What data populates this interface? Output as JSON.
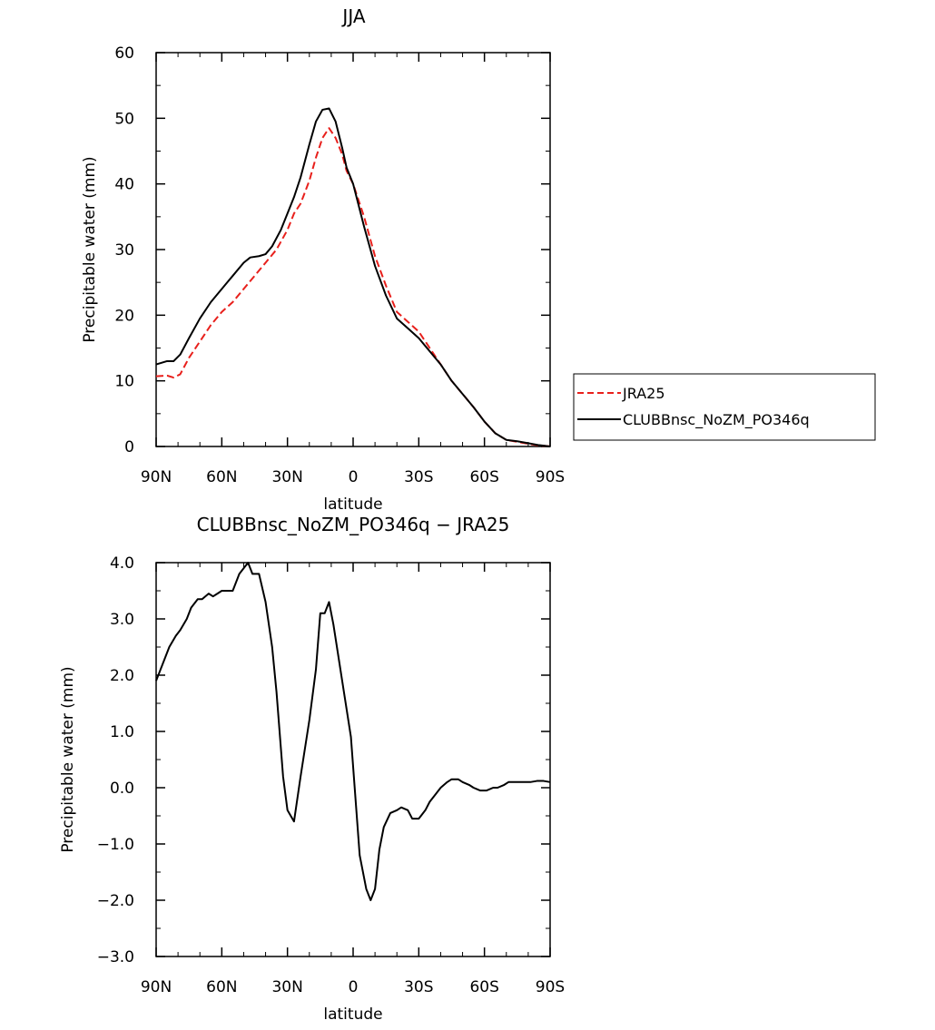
{
  "chart_data": [
    {
      "type": "line",
      "title": "JJA",
      "xlabel": "latitude",
      "ylabel": "Precipitable water (mm)",
      "x_ticks": [
        "90N",
        "60N",
        "30N",
        "0",
        "30S",
        "60S",
        "90S"
      ],
      "xlim": [
        90,
        -90
      ],
      "ylim": [
        0,
        60
      ],
      "y_ticks": [
        "0",
        "10",
        "20",
        "30",
        "40",
        "50",
        "60"
      ],
      "legend_position": "right",
      "grid": false,
      "series": [
        {
          "name": "JRA25",
          "color": "#e8201c",
          "style": "dashed",
          "x": [
            90,
            85,
            82,
            79,
            75,
            70,
            65,
            60,
            55,
            50,
            45,
            40,
            35,
            30,
            27,
            24,
            20,
            17,
            14,
            11,
            8,
            5,
            3,
            0,
            -5,
            -10,
            -15,
            -20,
            -25,
            -30,
            -35,
            -40,
            -45,
            -50,
            -55,
            -60,
            -65,
            -70,
            -75,
            -80,
            -85,
            -90
          ],
          "y": [
            10.7,
            10.8,
            10.5,
            11.0,
            13.5,
            16.0,
            18.5,
            20.5,
            22.0,
            24.0,
            26.0,
            28.0,
            30.0,
            33.0,
            35.5,
            37.0,
            40.5,
            44.0,
            47.0,
            48.5,
            47.0,
            44.5,
            42.0,
            40.0,
            35.0,
            29.0,
            24.5,
            20.5,
            19.0,
            17.5,
            15.0,
            12.5,
            10.0,
            8.0,
            6.0,
            3.8,
            2.0,
            1.0,
            0.7,
            0.4,
            0.15,
            0.05
          ]
        },
        {
          "name": "CLUBBnsc_NoZM_PO346q",
          "color": "#000000",
          "style": "solid",
          "x": [
            90,
            85,
            82,
            79,
            75,
            70,
            65,
            60,
            55,
            50,
            47,
            43,
            40,
            37,
            33,
            30,
            27,
            24,
            20,
            17,
            14,
            11,
            8,
            5,
            3,
            0,
            -5,
            -10,
            -15,
            -20,
            -25,
            -30,
            -35,
            -40,
            -45,
            -50,
            -55,
            -60,
            -65,
            -70,
            -75,
            -80,
            -85,
            -90
          ],
          "y": [
            12.5,
            13.0,
            13.0,
            14.0,
            16.5,
            19.5,
            22.0,
            24.0,
            26.0,
            28.0,
            28.8,
            29.0,
            29.3,
            30.5,
            33.0,
            35.5,
            38.0,
            41.0,
            46.0,
            49.5,
            51.3,
            51.5,
            49.5,
            45.5,
            42.5,
            40.0,
            33.5,
            27.5,
            23.0,
            19.5,
            18.0,
            16.5,
            14.5,
            12.5,
            10.0,
            8.0,
            6.0,
            3.8,
            2.0,
            1.0,
            0.8,
            0.5,
            0.2,
            0.0
          ]
        }
      ]
    },
    {
      "type": "line",
      "title": "CLUBBnsc_NoZM_PO346q − JRA25",
      "xlabel": "latitude",
      "ylabel": "Precipitable water (mm)",
      "x_ticks": [
        "90N",
        "60N",
        "30N",
        "0",
        "30S",
        "60S",
        "90S"
      ],
      "xlim": [
        90,
        -90
      ],
      "ylim": [
        -3.0,
        4.0
      ],
      "y_ticks": [
        "−3.0",
        "−2.0",
        "−1.0",
        "0.0",
        "1.0",
        "2.0",
        "3.0",
        "4.0"
      ],
      "grid": false,
      "series": [
        {
          "color": "#000000",
          "style": "solid",
          "x": [
            90,
            87,
            84,
            81,
            79,
            76,
            74,
            71,
            69,
            66,
            64,
            62,
            60,
            57,
            55,
            52,
            48,
            46,
            43,
            40,
            37,
            35,
            32,
            30,
            27,
            24,
            20,
            17,
            15,
            13,
            11,
            9,
            7,
            5,
            3,
            1,
            -3,
            -6,
            -8,
            -10,
            -12,
            -14,
            -17,
            -20,
            -22,
            -25,
            -27,
            -30,
            -33,
            -35,
            -38,
            -40,
            -43,
            -45,
            -48,
            -50,
            -53,
            -55,
            -58,
            -61,
            -64,
            -66,
            -69,
            -71,
            -74,
            -76,
            -79,
            -81,
            -84,
            -87,
            -90
          ],
          "y": [
            1.9,
            2.2,
            2.5,
            2.7,
            2.8,
            3.0,
            3.2,
            3.35,
            3.35,
            3.45,
            3.4,
            3.45,
            3.5,
            3.5,
            3.5,
            3.8,
            4.0,
            3.8,
            3.8,
            3.3,
            2.5,
            1.7,
            0.2,
            -0.4,
            -0.6,
            0.2,
            1.2,
            2.1,
            3.1,
            3.1,
            3.3,
            2.9,
            2.4,
            1.9,
            1.4,
            0.9,
            -1.2,
            -1.8,
            -2.0,
            -1.8,
            -1.1,
            -0.7,
            -0.45,
            -0.4,
            -0.35,
            -0.4,
            -0.55,
            -0.55,
            -0.4,
            -0.25,
            -0.1,
            0.0,
            0.1,
            0.15,
            0.15,
            0.1,
            0.05,
            0.0,
            -0.05,
            -0.05,
            0.0,
            0.0,
            0.05,
            0.1,
            0.1,
            0.1,
            0.1,
            0.1,
            0.12,
            0.12,
            0.1
          ]
        }
      ]
    }
  ]
}
